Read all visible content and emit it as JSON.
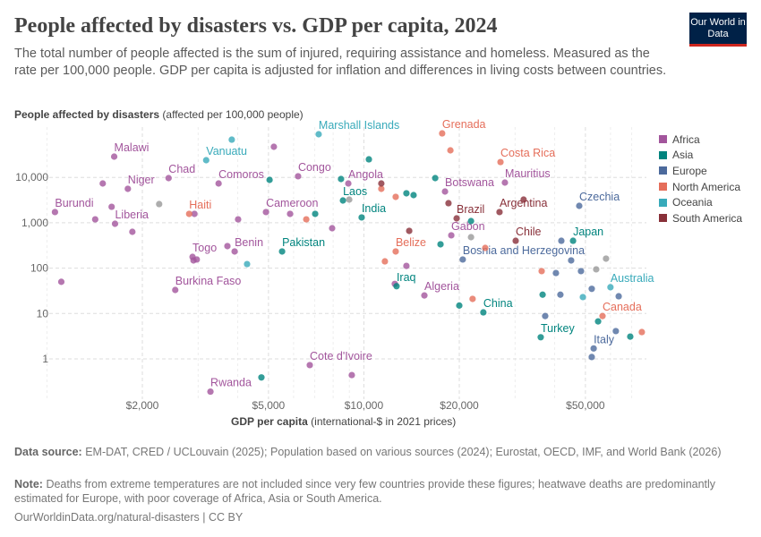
{
  "header": {
    "title": "People affected by disasters vs. GDP per capita, 2024",
    "subtitle": "The total number of people affected is the sum of injured, requiring assistance and homeless. Measured as the rate per 100,000 people. GDP per capita is adjusted for inflation and differences in living costs between countries.",
    "logo_text": "Our World in Data"
  },
  "footer": {
    "source_label": "Data source:",
    "source_text": "EM-DAT, CRED / UCLouvain (2025); Population based on various sources (2024); Eurostat, OECD, IMF, and World Bank (2026)",
    "note_label": "Note:",
    "note_text": "Deaths from extreme temperatures are not included since very few countries provide these figures; heatwave deaths are predominantly estimated for Europe, with poor coverage of Africa, Asia or South America.",
    "url": "OurWorldinData.org/natural-disasters | CC BY"
  },
  "chart_data": {
    "type": "scatter",
    "ylabel_bold": "People affected by disasters",
    "ylabel_rest": "(affected per 100,000 people)",
    "xlabel_bold": "GDP per capita",
    "xlabel_rest": "(international-$ in 2021 prices)",
    "x_scale": "log",
    "y_scale": "log",
    "xlim": [
      950,
      80000
    ],
    "ylim": [
      0.15,
      110000
    ],
    "grid": true,
    "legend_placement": "right",
    "x_ticks": [
      {
        "value": 2000,
        "label": "$2,000"
      },
      {
        "value": 5000,
        "label": "$5,000"
      },
      {
        "value": 10000,
        "label": "$10,000"
      },
      {
        "value": 20000,
        "label": "$20,000"
      },
      {
        "value": 50000,
        "label": "$50,000"
      }
    ],
    "y_ticks": [
      {
        "value": 1,
        "label": "1"
      },
      {
        "value": 10,
        "label": "10"
      },
      {
        "value": 100,
        "label": "100"
      },
      {
        "value": 1000,
        "label": "1,000"
      },
      {
        "value": 10000,
        "label": "10,000"
      }
    ],
    "regions": [
      {
        "name": "Africa",
        "color": "#a2559c"
      },
      {
        "name": "Asia",
        "color": "#00847e"
      },
      {
        "name": "Europe",
        "color": "#4c6a9c"
      },
      {
        "name": "North America",
        "color": "#e56e5a"
      },
      {
        "name": "Oceania",
        "color": "#38aaba"
      },
      {
        "name": "South America",
        "color": "#883039"
      }
    ],
    "other_color": "#999999",
    "points": [
      {
        "label": "Malawi",
        "region": "Africa",
        "x": 1630,
        "y": 28700
      },
      {
        "label": "Niger",
        "region": "Africa",
        "x": 1800,
        "y": 5600
      },
      {
        "label": "Chad",
        "region": "Africa",
        "x": 2420,
        "y": 9640
      },
      {
        "label": "Comoros",
        "region": "Africa",
        "x": 3480,
        "y": 7340
      },
      {
        "label": "Congo",
        "region": "Africa",
        "x": 6200,
        "y": 10600
      },
      {
        "label": "Angola",
        "region": "Africa",
        "x": 8930,
        "y": 7340
      },
      {
        "label": "Botswana",
        "region": "Africa",
        "x": 18030,
        "y": 4880
      },
      {
        "label": "Mauritius",
        "region": "Africa",
        "x": 27860,
        "y": 7690
      },
      {
        "label": "Burundi",
        "region": "Africa",
        "x": 1060,
        "y": 1720
      },
      {
        "label": "Liberia",
        "region": "Africa",
        "x": 1640,
        "y": 951
      },
      {
        "label": "Cameroon",
        "region": "Africa",
        "x": 4910,
        "y": 1720
      },
      {
        "label": "Gabon",
        "region": "Africa",
        "x": 18870,
        "y": 528
      },
      {
        "label": "Benin",
        "region": "Africa",
        "x": 3910,
        "y": 233
      },
      {
        "label": "Togo",
        "region": "Africa",
        "x": 2880,
        "y": 177
      },
      {
        "label": "Burkina Faso",
        "region": "Africa",
        "x": 2540,
        "y": 33
      },
      {
        "label": "Algeria",
        "region": "Africa",
        "x": 15520,
        "y": 25
      },
      {
        "label": "Cote d'Ivoire",
        "region": "Africa",
        "x": 6750,
        "y": 0.73
      },
      {
        "label": "Rwanda",
        "region": "Africa",
        "x": 3280,
        "y": 0.19
      },
      {
        "label": "",
        "region": "Africa",
        "x": 1500,
        "y": 7340
      },
      {
        "label": "",
        "region": "Africa",
        "x": 1600,
        "y": 2250
      },
      {
        "label": "",
        "region": "Africa",
        "x": 1420,
        "y": 1190
      },
      {
        "label": "",
        "region": "Africa",
        "x": 1860,
        "y": 632
      },
      {
        "label": "",
        "region": "Africa",
        "x": 2920,
        "y": 1570
      },
      {
        "label": "",
        "region": "Africa",
        "x": 4010,
        "y": 1190
      },
      {
        "label": "",
        "region": "Africa",
        "x": 5200,
        "y": 47300
      },
      {
        "label": "",
        "region": "Africa",
        "x": 5850,
        "y": 1570
      },
      {
        "label": "",
        "region": "Africa",
        "x": 7940,
        "y": 758
      },
      {
        "label": "",
        "region": "Africa",
        "x": 3710,
        "y": 306
      },
      {
        "label": "",
        "region": "Africa",
        "x": 2900,
        "y": 148
      },
      {
        "label": "",
        "region": "Africa",
        "x": 2970,
        "y": 155
      },
      {
        "label": "",
        "region": "Africa",
        "x": 1110,
        "y": 50
      },
      {
        "label": "",
        "region": "Africa",
        "x": 9160,
        "y": 0.44
      },
      {
        "label": "",
        "region": "Africa",
        "x": 12520,
        "y": 45
      },
      {
        "label": "",
        "region": "Africa",
        "x": 13620,
        "y": 112
      },
      {
        "label": "Pakistan",
        "region": "Asia",
        "x": 5520,
        "y": 233
      },
      {
        "label": "Laos",
        "region": "Asia",
        "x": 8590,
        "y": 3100
      },
      {
        "label": "India",
        "region": "Asia",
        "x": 9840,
        "y": 1310
      },
      {
        "label": "Japan",
        "region": "Asia",
        "x": 45710,
        "y": 401
      },
      {
        "label": "Iraq",
        "region": "Asia",
        "x": 12680,
        "y": 40
      },
      {
        "label": "China",
        "region": "Asia",
        "x": 23820,
        "y": 10.6
      },
      {
        "label": "Turkey",
        "region": "Asia",
        "x": 36140,
        "y": 3.0
      },
      {
        "label": "",
        "region": "Asia",
        "x": 5040,
        "y": 8810
      },
      {
        "label": "",
        "region": "Asia",
        "x": 7020,
        "y": 1570
      },
      {
        "label": "",
        "region": "Asia",
        "x": 8470,
        "y": 9210
      },
      {
        "label": "",
        "region": "Asia",
        "x": 10370,
        "y": 25000
      },
      {
        "label": "",
        "region": "Asia",
        "x": 13620,
        "y": 4460
      },
      {
        "label": "",
        "region": "Asia",
        "x": 14350,
        "y": 4070
      },
      {
        "label": "",
        "region": "Asia",
        "x": 16790,
        "y": 9640
      },
      {
        "label": "",
        "region": "Asia",
        "x": 21780,
        "y": 1090
      },
      {
        "label": "",
        "region": "Asia",
        "x": 17450,
        "y": 335
      },
      {
        "label": "",
        "region": "Asia",
        "x": 20000,
        "y": 15
      },
      {
        "label": "",
        "region": "Asia",
        "x": 4750,
        "y": 0.39
      },
      {
        "label": "",
        "region": "Asia",
        "x": 36640,
        "y": 26
      },
      {
        "label": "",
        "region": "Asia",
        "x": 54830,
        "y": 6.7
      },
      {
        "label": "",
        "region": "Asia",
        "x": 69260,
        "y": 3.1
      },
      {
        "label": "Czechia",
        "region": "Europe",
        "x": 47810,
        "y": 2360
      },
      {
        "label": "Bosnia and Herzegovina",
        "region": "Europe",
        "x": 20510,
        "y": 155
      },
      {
        "label": "Italy",
        "region": "Europe",
        "x": 53090,
        "y": 1.7
      },
      {
        "label": "",
        "region": "Europe",
        "x": 41980,
        "y": 401
      },
      {
        "label": "",
        "region": "Europe",
        "x": 45080,
        "y": 148
      },
      {
        "label": "",
        "region": "Europe",
        "x": 40360,
        "y": 78
      },
      {
        "label": "",
        "region": "Europe",
        "x": 48420,
        "y": 86
      },
      {
        "label": "",
        "region": "Europe",
        "x": 41690,
        "y": 26
      },
      {
        "label": "",
        "region": "Europe",
        "x": 52360,
        "y": 35
      },
      {
        "label": "",
        "region": "Europe",
        "x": 63680,
        "y": 24
      },
      {
        "label": "",
        "region": "Europe",
        "x": 37330,
        "y": 8.8
      },
      {
        "label": "",
        "region": "Europe",
        "x": 62370,
        "y": 4.1
      },
      {
        "label": "",
        "region": "Europe",
        "x": 52360,
        "y": 1.1
      },
      {
        "label": "Grenada",
        "region": "North America",
        "x": 17660,
        "y": 93300
      },
      {
        "label": "Costa Rica",
        "region": "North America",
        "x": 26980,
        "y": 21800
      },
      {
        "label": "Haiti",
        "region": "North America",
        "x": 2810,
        "y": 1570
      },
      {
        "label": "Belize",
        "region": "North America",
        "x": 12600,
        "y": 233
      },
      {
        "label": "Canada",
        "region": "North America",
        "x": 56620,
        "y": 8.8
      },
      {
        "label": "",
        "region": "North America",
        "x": 18750,
        "y": 39400
      },
      {
        "label": "",
        "region": "North America",
        "x": 11350,
        "y": 5600
      },
      {
        "label": "",
        "region": "North America",
        "x": 12600,
        "y": 3720
      },
      {
        "label": "",
        "region": "North America",
        "x": 6580,
        "y": 1190
      },
      {
        "label": "",
        "region": "North America",
        "x": 11650,
        "y": 141
      },
      {
        "label": "",
        "region": "North America",
        "x": 22030,
        "y": 21
      },
      {
        "label": "",
        "region": "North America",
        "x": 36390,
        "y": 86
      },
      {
        "label": "",
        "region": "North America",
        "x": 75340,
        "y": 3.9
      },
      {
        "label": "",
        "region": "North America",
        "x": 24150,
        "y": 279
      },
      {
        "label": "Vanuatu",
        "region": "Oceania",
        "x": 3180,
        "y": 23900
      },
      {
        "label": "Marshall Islands",
        "region": "Oceania",
        "x": 7200,
        "y": 89300
      },
      {
        "label": "Australia",
        "region": "Oceania",
        "x": 59980,
        "y": 38
      },
      {
        "label": "",
        "region": "Oceania",
        "x": 3830,
        "y": 67900
      },
      {
        "label": "",
        "region": "Oceania",
        "x": 4280,
        "y": 123
      },
      {
        "label": "",
        "region": "Oceania",
        "x": 49090,
        "y": 23
      },
      {
        "label": "Brazil",
        "region": "South America",
        "x": 19620,
        "y": 1250
      },
      {
        "label": "Argentina",
        "region": "South America",
        "x": 26790,
        "y": 1720
      },
      {
        "label": "Chile",
        "region": "South America",
        "x": 30130,
        "y": 401
      },
      {
        "label": "",
        "region": "South America",
        "x": 11350,
        "y": 7340
      },
      {
        "label": "",
        "region": "South America",
        "x": 18490,
        "y": 2700
      },
      {
        "label": "",
        "region": "South America",
        "x": 31920,
        "y": 3240
      },
      {
        "label": "",
        "region": "South America",
        "x": 13900,
        "y": 662
      },
      {
        "label": "",
        "region": "",
        "x": 2260,
        "y": 2580
      },
      {
        "label": "",
        "region": "",
        "x": 8990,
        "y": 3240
      },
      {
        "label": "",
        "region": "",
        "x": 21780,
        "y": 481
      },
      {
        "label": "",
        "region": "",
        "x": 58080,
        "y": 162
      },
      {
        "label": "",
        "region": "",
        "x": 54080,
        "y": 94
      }
    ]
  }
}
